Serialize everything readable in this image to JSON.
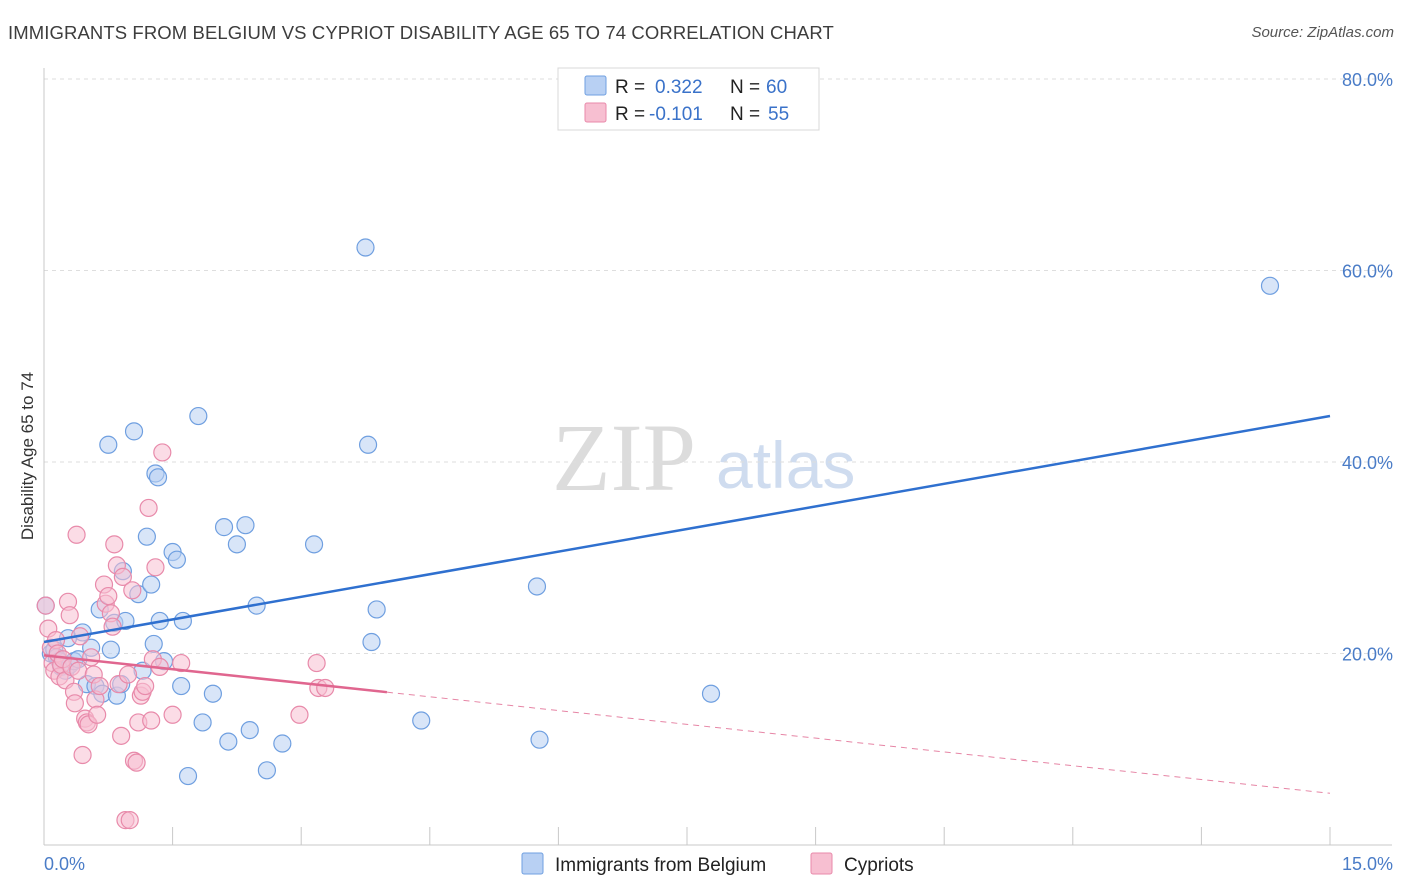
{
  "chart_data": {
    "type": "scatter",
    "title": "IMMIGRANTS FROM BELGIUM VS CYPRIOT DISABILITY AGE 65 TO 74 CORRELATION CHART",
    "source": "Source: ZipAtlas.com",
    "xlabel": "",
    "ylabel": "Disability Age 65 to 74",
    "xlim": [
      0,
      15
    ],
    "ylim": [
      0,
      80
    ],
    "x_tick_labels": {
      "min": "0.0%",
      "max": "15.0%"
    },
    "y_ticks": [
      {
        "value": 20,
        "label": "20.0%"
      },
      {
        "value": 40,
        "label": "40.0%"
      },
      {
        "value": 60,
        "label": "60.0%"
      },
      {
        "value": 80,
        "label": "80.0%"
      }
    ],
    "grid": "horizontal dashed",
    "watermark": {
      "zip": "ZIP",
      "atlas": "atlas"
    },
    "legend": {
      "placement": "top-center",
      "rows": [
        {
          "r_label": "R =",
          "r_value": "0.322",
          "n_label": "N =",
          "n_value": "60"
        },
        {
          "r_label": "R =",
          "r_value": "-0.101",
          "n_label": "N =",
          "n_value": "55"
        }
      ]
    },
    "series": [
      {
        "name": "Immigrants from Belgium",
        "color": "#6f9fe0",
        "fill": "#b8d0f3",
        "trend_color": "#2f70cf",
        "trend": {
          "x0": 0,
          "y0": 21.2,
          "x1": 15,
          "y1": 44.8,
          "dashed_from": null
        },
        "points": [
          [
            0.02,
            25.0
          ],
          [
            0.08,
            20.0
          ],
          [
            0.12,
            20.4
          ],
          [
            0.15,
            19.6
          ],
          [
            0.18,
            19.2
          ],
          [
            0.2,
            18.6
          ],
          [
            0.25,
            18.2
          ],
          [
            0.28,
            21.6
          ],
          [
            0.3,
            18.8
          ],
          [
            0.35,
            19.2
          ],
          [
            0.4,
            19.4
          ],
          [
            0.45,
            22.2
          ],
          [
            0.5,
            16.8
          ],
          [
            0.55,
            20.6
          ],
          [
            0.6,
            16.6
          ],
          [
            0.65,
            24.6
          ],
          [
            0.68,
            15.8
          ],
          [
            0.75,
            41.8
          ],
          [
            0.78,
            20.4
          ],
          [
            0.82,
            23.2
          ],
          [
            0.85,
            15.6
          ],
          [
            0.9,
            16.8
          ],
          [
            0.92,
            28.6
          ],
          [
            0.95,
            23.4
          ],
          [
            1.05,
            43.2
          ],
          [
            1.1,
            26.2
          ],
          [
            1.15,
            18.2
          ],
          [
            1.2,
            32.2
          ],
          [
            1.25,
            27.2
          ],
          [
            1.28,
            21.0
          ],
          [
            1.3,
            38.8
          ],
          [
            1.33,
            38.4
          ],
          [
            1.35,
            23.4
          ],
          [
            1.4,
            19.2
          ],
          [
            1.5,
            30.6
          ],
          [
            1.55,
            29.8
          ],
          [
            1.6,
            16.6
          ],
          [
            1.62,
            23.4
          ],
          [
            1.68,
            7.2
          ],
          [
            1.8,
            44.8
          ],
          [
            1.85,
            12.8
          ],
          [
            1.97,
            15.8
          ],
          [
            2.1,
            33.2
          ],
          [
            2.15,
            10.8
          ],
          [
            2.25,
            31.4
          ],
          [
            2.35,
            33.4
          ],
          [
            2.4,
            12.0
          ],
          [
            2.48,
            25.0
          ],
          [
            2.6,
            7.8
          ],
          [
            2.78,
            10.6
          ],
          [
            3.15,
            31.4
          ],
          [
            3.75,
            62.4
          ],
          [
            3.78,
            41.8
          ],
          [
            3.82,
            21.2
          ],
          [
            3.88,
            24.6
          ],
          [
            4.4,
            13.0
          ],
          [
            5.75,
            27.0
          ],
          [
            5.78,
            11.0
          ],
          [
            7.78,
            15.8
          ],
          [
            14.3,
            58.4
          ]
        ]
      },
      {
        "name": "Cypriots",
        "color": "#e88aaa",
        "fill": "#f7bfd1",
        "trend_color": "#e0668f",
        "trend": {
          "x0": 0,
          "y0": 19.8,
          "x1": 15,
          "y1": 5.4,
          "dashed_from": 4.0
        },
        "points": [
          [
            0.02,
            25.0
          ],
          [
            0.05,
            22.6
          ],
          [
            0.08,
            20.6
          ],
          [
            0.1,
            19.0
          ],
          [
            0.12,
            18.2
          ],
          [
            0.14,
            21.4
          ],
          [
            0.16,
            20.0
          ],
          [
            0.18,
            17.6
          ],
          [
            0.2,
            18.8
          ],
          [
            0.22,
            19.4
          ],
          [
            0.25,
            17.2
          ],
          [
            0.28,
            25.4
          ],
          [
            0.3,
            24.0
          ],
          [
            0.32,
            18.6
          ],
          [
            0.35,
            16.0
          ],
          [
            0.36,
            14.8
          ],
          [
            0.38,
            32.4
          ],
          [
            0.4,
            18.2
          ],
          [
            0.42,
            21.8
          ],
          [
            0.45,
            9.4
          ],
          [
            0.48,
            13.2
          ],
          [
            0.5,
            12.8
          ],
          [
            0.52,
            12.6
          ],
          [
            0.55,
            19.6
          ],
          [
            0.58,
            17.8
          ],
          [
            0.6,
            15.2
          ],
          [
            0.62,
            13.6
          ],
          [
            0.65,
            16.6
          ],
          [
            0.7,
            27.2
          ],
          [
            0.72,
            25.2
          ],
          [
            0.75,
            26.0
          ],
          [
            0.78,
            24.2
          ],
          [
            0.8,
            22.8
          ],
          [
            0.82,
            31.4
          ],
          [
            0.85,
            29.2
          ],
          [
            0.87,
            16.8
          ],
          [
            0.9,
            11.4
          ],
          [
            0.92,
            28.0
          ],
          [
            0.95,
            2.6
          ],
          [
            0.98,
            17.8
          ],
          [
            1.0,
            2.6
          ],
          [
            1.03,
            26.6
          ],
          [
            1.05,
            8.8
          ],
          [
            1.08,
            8.6
          ],
          [
            1.1,
            12.8
          ],
          [
            1.13,
            15.6
          ],
          [
            1.15,
            16.0
          ],
          [
            1.18,
            16.6
          ],
          [
            1.22,
            35.2
          ],
          [
            1.25,
            13.0
          ],
          [
            1.27,
            19.4
          ],
          [
            1.3,
            29.0
          ],
          [
            1.35,
            18.6
          ],
          [
            1.38,
            41.0
          ],
          [
            1.5,
            13.6
          ]
        ],
        "extra_points": [
          [
            1.6,
            19.0
          ],
          [
            2.98,
            13.6
          ],
          [
            3.18,
            19.0
          ],
          [
            3.2,
            16.4
          ],
          [
            3.28,
            16.4
          ]
        ]
      }
    ]
  }
}
